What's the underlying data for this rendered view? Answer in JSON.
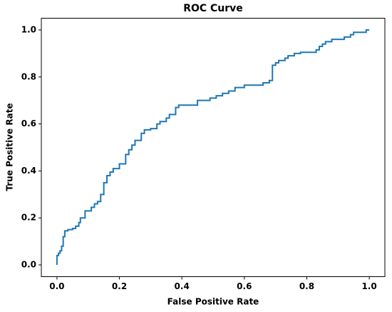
{
  "chart_data": {
    "type": "line",
    "title": "ROC Curve",
    "xlabel": "False Positive Rate",
    "ylabel": "True Positive Rate",
    "color": "#1f77b4",
    "x": [
      0,
      0,
      0.005,
      0.005,
      0.01,
      0.01,
      0.015,
      0.015,
      0.02,
      0.02,
      0.025,
      0.025,
      0.035,
      0.035,
      0.05,
      0.05,
      0.06,
      0.06,
      0.07,
      0.07,
      0.075,
      0.075,
      0.09,
      0.09,
      0.11,
      0.11,
      0.12,
      0.12,
      0.13,
      0.13,
      0.14,
      0.14,
      0.15,
      0.15,
      0.16,
      0.16,
      0.17,
      0.17,
      0.18,
      0.18,
      0.2,
      0.2,
      0.22,
      0.22,
      0.23,
      0.23,
      0.24,
      0.24,
      0.25,
      0.25,
      0.27,
      0.27,
      0.28,
      0.28,
      0.3,
      0.3,
      0.32,
      0.32,
      0.33,
      0.33,
      0.35,
      0.35,
      0.36,
      0.36,
      0.38,
      0.38,
      0.39,
      0.39,
      0.45,
      0.45,
      0.49,
      0.49,
      0.51,
      0.51,
      0.53,
      0.53,
      0.55,
      0.55,
      0.57,
      0.57,
      0.6,
      0.6,
      0.66,
      0.66,
      0.68,
      0.68,
      0.69,
      0.69,
      0.7,
      0.7,
      0.71,
      0.71,
      0.73,
      0.73,
      0.74,
      0.74,
      0.76,
      0.76,
      0.78,
      0.78,
      0.83,
      0.83,
      0.84,
      0.84,
      0.85,
      0.85,
      0.86,
      0.86,
      0.88,
      0.88,
      0.92,
      0.92,
      0.94,
      0.94,
      0.95,
      0.95,
      0.99,
      0.99,
      1.0
    ],
    "values": [
      0,
      0.04,
      0.04,
      0.05,
      0.05,
      0.06,
      0.06,
      0.08,
      0.08,
      0.12,
      0.12,
      0.145,
      0.145,
      0.15,
      0.15,
      0.155,
      0.155,
      0.165,
      0.165,
      0.18,
      0.18,
      0.2,
      0.2,
      0.23,
      0.23,
      0.245,
      0.245,
      0.26,
      0.26,
      0.27,
      0.27,
      0.3,
      0.3,
      0.35,
      0.35,
      0.38,
      0.38,
      0.395,
      0.395,
      0.41,
      0.41,
      0.43,
      0.43,
      0.47,
      0.47,
      0.49,
      0.49,
      0.51,
      0.51,
      0.53,
      0.53,
      0.56,
      0.56,
      0.575,
      0.575,
      0.58,
      0.58,
      0.6,
      0.6,
      0.61,
      0.61,
      0.625,
      0.625,
      0.64,
      0.64,
      0.67,
      0.67,
      0.68,
      0.68,
      0.7,
      0.7,
      0.71,
      0.71,
      0.72,
      0.72,
      0.73,
      0.73,
      0.74,
      0.74,
      0.755,
      0.755,
      0.765,
      0.765,
      0.775,
      0.775,
      0.785,
      0.785,
      0.85,
      0.85,
      0.86,
      0.86,
      0.87,
      0.87,
      0.88,
      0.88,
      0.89,
      0.89,
      0.9,
      0.9,
      0.905,
      0.905,
      0.915,
      0.915,
      0.93,
      0.93,
      0.94,
      0.94,
      0.95,
      0.95,
      0.96,
      0.96,
      0.97,
      0.97,
      0.98,
      0.98,
      0.99,
      0.99,
      1.0,
      1.0
    ],
    "xlim": [
      -0.05,
      1.05
    ],
    "ylim": [
      -0.05,
      1.05
    ],
    "xticks": [
      {
        "value": 0,
        "label": "0.0"
      },
      0.2,
      0.4,
      0.6,
      0.8,
      {
        "value": 1,
        "label": "1.0"
      }
    ],
    "yticks": [
      {
        "value": 0,
        "label": "0.0"
      },
      0.2,
      0.4,
      0.6,
      0.8,
      {
        "value": 1,
        "label": "1.0"
      }
    ],
    "grid": false
  }
}
